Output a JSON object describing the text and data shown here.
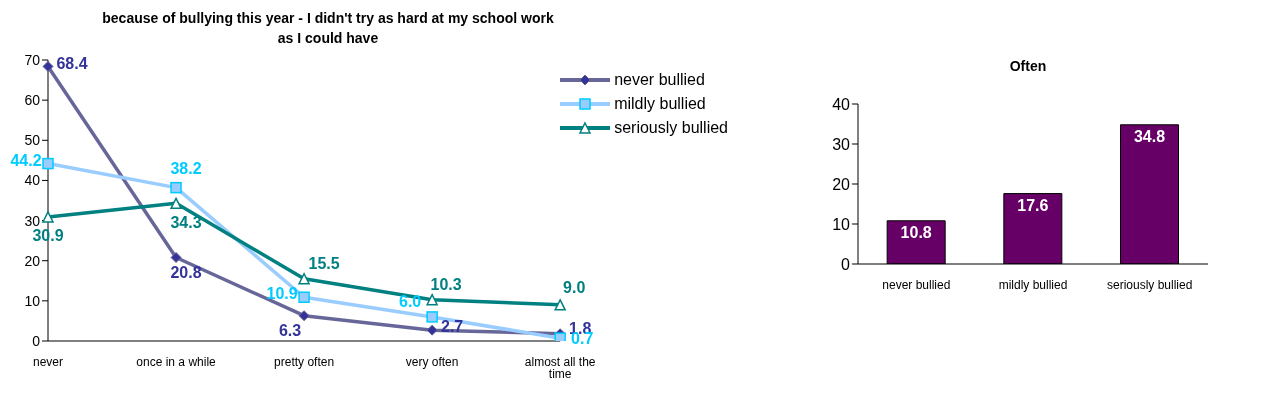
{
  "chart_data": [
    {
      "type": "line",
      "title": "because of bullying this year - I  didn't try as hard at my school work as I could have",
      "categories": [
        "never",
        "once in a while",
        "pretty often",
        "very often",
        "almost all the time"
      ],
      "series": [
        {
          "name": "never bullied",
          "color": "#666699",
          "marker": "diamond",
          "values": [
            68.4,
            20.8,
            6.3,
            2.7,
            1.8
          ],
          "value_labels": [
            "68.4",
            "20.8",
            "6.3",
            "2.7",
            "1.8"
          ]
        },
        {
          "name": "mildly bullied",
          "color": "#99ccff",
          "marker": "square",
          "values": [
            44.2,
            38.2,
            10.9,
            6.0,
            0.7
          ],
          "value_labels": [
            "44.2",
            "38.2",
            "10.9",
            "6.0",
            "0.7"
          ]
        },
        {
          "name": "seriously bullied",
          "color": "#008080",
          "marker": "triangle",
          "values": [
            30.9,
            34.3,
            15.5,
            10.3,
            9.0
          ],
          "value_labels": [
            "30.9",
            "34.3",
            "15.5",
            "10.3",
            "9.0"
          ]
        }
      ],
      "ylim": [
        0,
        70
      ],
      "yticks": [
        0,
        10,
        20,
        30,
        40,
        50,
        60,
        70
      ],
      "grid": false,
      "legend": "top right"
    },
    {
      "type": "bar",
      "title": "Often",
      "categories": [
        "never bullied",
        "mildly bullied",
        "seriously bullied"
      ],
      "values": [
        10.8,
        17.6,
        34.8
      ],
      "color": "#660066",
      "ylim": [
        0,
        40
      ],
      "yticks": [
        0,
        10,
        20,
        30,
        40
      ],
      "grid": false,
      "data_labels": true
    }
  ]
}
